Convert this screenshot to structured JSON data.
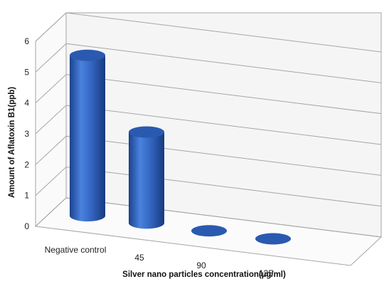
{
  "chart_data": {
    "type": "bar",
    "style": "3d-cylinder",
    "categories": [
      "Negative control",
      "45",
      "90",
      "135"
    ],
    "series": [
      {
        "values": [
          5.2,
          2.95,
          0,
          0
        ]
      }
    ],
    "xlabel": "Silver nano particles concentration(µg/ml)",
    "ylabel": "Amount of Aflatoxin B1(ppb)",
    "ylim": [
      0,
      6
    ],
    "yticks": [
      "0",
      "1",
      "2",
      "3",
      "4",
      "5",
      "6"
    ],
    "grid": true,
    "legend": "none",
    "colors": {
      "bar_body": "#3467c2",
      "bar_top": "#2a5ab0",
      "gridline": "#a6a6a6",
      "wall": "#f5f5f5"
    }
  }
}
